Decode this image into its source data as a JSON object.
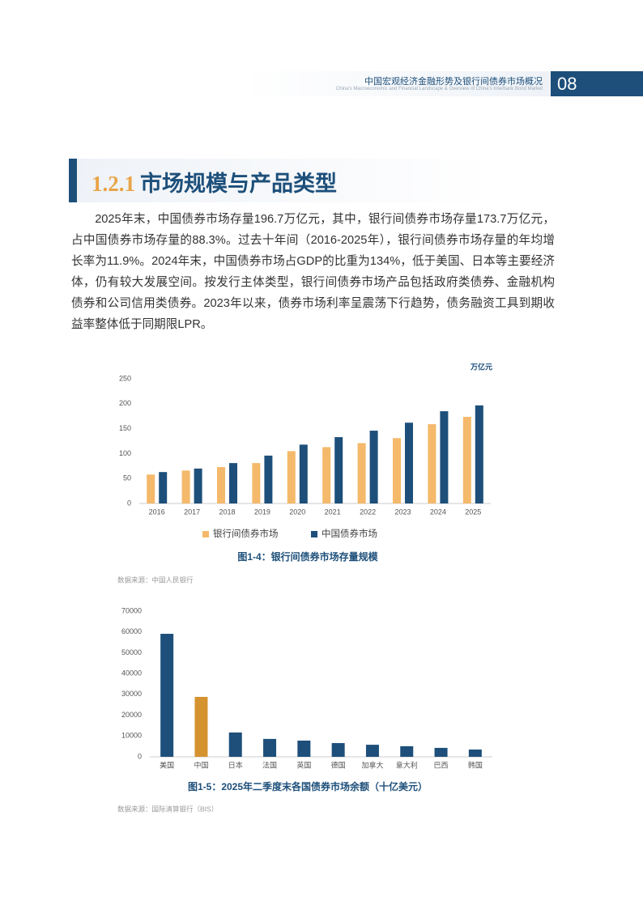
{
  "header": {
    "title": "中国宏观经济金融形势及银行间债券市场概况",
    "subtitle": "China's Macroeconomic and Financial Landscape & Overview of China's Interbank Bond Market",
    "page": "08"
  },
  "section": {
    "number": "1.2.1",
    "title": "市场规模与产品类型"
  },
  "paragraph": "2025年末，中国债券市场存量196.7万亿元，其中，银行间债券市场存量173.7万亿元，占中国债券市场存量的88.3%。过去十年间（2016-2025年），银行间债券市场存量的年均增长率为11.9%。2024年末，中国债券市场占GDP的比重为134%，低于美国、日本等主要经济体，仍有较大发展空间。按发行主体类型，银行间债券市场产品包括政府类债券、金融机构债券和公司信用类债券。2023年以来，债券市场利率呈震荡下行趋势，债务融资工具到期收益率整体低于同期限LPR。",
  "chart_data": [
    {
      "type": "bar",
      "unit": "万亿元",
      "categories": [
        "2016",
        "2017",
        "2018",
        "2019",
        "2020",
        "2021",
        "2022",
        "2023",
        "2024",
        "2025"
      ],
      "series": [
        {
          "name": "银行间债券市场",
          "color": "#f4b96a",
          "values": [
            58,
            66,
            73,
            81,
            105,
            113,
            121,
            131,
            159,
            173.7
          ]
        },
        {
          "name": "中国债券市场",
          "color": "#1d4f7a",
          "values": [
            63,
            70,
            81,
            96,
            118,
            133,
            146,
            162,
            185,
            196.7
          ]
        }
      ],
      "ylim": [
        0,
        250
      ],
      "yticks": [
        0,
        50,
        100,
        150,
        200,
        250
      ],
      "caption": "图1-4：银行间债券市场存量规模",
      "source": "数据来源：中国人民银行"
    },
    {
      "type": "bar",
      "categories": [
        "美国",
        "中国",
        "日本",
        "法国",
        "英国",
        "德国",
        "加拿大",
        "意大利",
        "巴西",
        "韩国"
      ],
      "values": [
        59100,
        28800,
        11700,
        8600,
        7800,
        6600,
        5800,
        5100,
        4300,
        3500
      ],
      "colors": [
        "#1d4f7a",
        "#d4932f",
        "#1d4f7a",
        "#1d4f7a",
        "#1d4f7a",
        "#1d4f7a",
        "#1d4f7a",
        "#1d4f7a",
        "#1d4f7a",
        "#1d4f7a"
      ],
      "ylim": [
        0,
        70000
      ],
      "yticks": [
        0,
        10000,
        20000,
        30000,
        40000,
        50000,
        60000,
        70000
      ],
      "caption": "图1-5：2025年二季度末各国债券市场余额（十亿美元）",
      "source": "数据来源：国际清算银行（BIS）"
    }
  ]
}
